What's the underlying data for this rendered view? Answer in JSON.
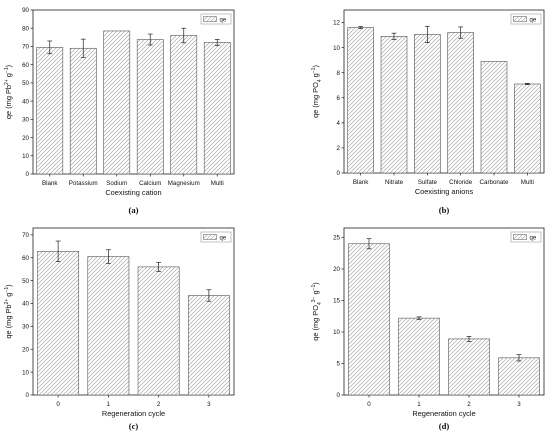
{
  "figure": {
    "panels": [
      {
        "id": "a",
        "label": "(a)",
        "ylabel_main": "qe (mg Pb",
        "ylabel_sup": "2+",
        "ylabel_tail": " g",
        "ylabel_sup2": "−1",
        "ylabel_close": ")",
        "xlabel": "Coexisting cation",
        "legend": "qe"
      },
      {
        "id": "b",
        "label": "(b)",
        "ylabel_main": "qe (mg PO",
        "ylabel_sub": "4",
        "ylabel_tail": " g",
        "ylabel_sup2": "−1",
        "ylabel_close": ")",
        "xlabel": "Coexisting anions",
        "legend": "qe"
      },
      {
        "id": "c",
        "label": "(c)",
        "ylabel_main": "qe (mg Pb",
        "ylabel_sup": "2+",
        "ylabel_tail": " g",
        "ylabel_sup2": "−1",
        "ylabel_close": ")",
        "xlabel": "Regeneration cycle",
        "legend": "qe"
      },
      {
        "id": "d",
        "label": "(d)",
        "ylabel_main": "qe (mg PO",
        "ylabel_sub": "4",
        "ylabel_sup": "3−",
        "ylabel_tail": " g",
        "ylabel_sup2": "−1",
        "ylabel_close": ")",
        "xlabel": "Regeneration cycle",
        "legend": "qe"
      }
    ],
    "colors": {
      "bar_fill": "#ffffff",
      "bar_stroke": "#555555",
      "hatch": "#9a9a9a",
      "axis": "#222222",
      "text": "#111111"
    }
  },
  "chart_data": [
    {
      "type": "bar",
      "categories": [
        "Blank",
        "Potassium",
        "Sodium",
        "Calcium",
        "Magnesium",
        "Multi"
      ],
      "values": [
        69.5,
        69.0,
        78.5,
        73.8,
        76.0,
        72.2
      ],
      "errors": [
        3.5,
        5.0,
        0.0,
        3.0,
        4.0,
        1.7
      ],
      "series": [
        {
          "name": "qe"
        }
      ],
      "xlabel": "Coexisting cation",
      "ylabel": "qe (mg Pb2+ g−1)",
      "ylim": [
        0,
        90
      ],
      "yticks": [
        0,
        10,
        20,
        30,
        40,
        50,
        60,
        70,
        80,
        90
      ],
      "legend_position": "top-right",
      "grid": false
    },
    {
      "type": "bar",
      "categories": [
        "Blank",
        "Nitrate",
        "Sulfate",
        "Chloride",
        "Carbonate",
        "Multi"
      ],
      "values": [
        11.6,
        10.9,
        11.05,
        11.2,
        8.9,
        7.1
      ],
      "errors": [
        0.08,
        0.25,
        0.65,
        0.45,
        0.0,
        0.05
      ],
      "series": [
        {
          "name": "qe"
        }
      ],
      "xlabel": "Coexisting anions",
      "ylabel": "qe (mg PO4 g−1)",
      "ylim": [
        0,
        13
      ],
      "yticks": [
        0,
        2,
        4,
        6,
        8,
        10,
        12
      ],
      "legend_position": "top-right",
      "grid": false
    },
    {
      "type": "bar",
      "categories": [
        "0",
        "1",
        "2",
        "3"
      ],
      "values": [
        62.8,
        60.5,
        56.0,
        43.5
      ],
      "errors": [
        4.5,
        3.0,
        2.0,
        2.5
      ],
      "series": [
        {
          "name": "qe"
        }
      ],
      "xlabel": "Regeneration cycle",
      "ylabel": "qe (mg Pb2+ g−1)",
      "ylim": [
        0,
        73
      ],
      "yticks": [
        0,
        10,
        20,
        30,
        40,
        50,
        60,
        70
      ],
      "legend_position": "top-right",
      "grid": false
    },
    {
      "type": "bar",
      "categories": [
        "0",
        "1",
        "2",
        "3"
      ],
      "values": [
        24.0,
        12.2,
        8.9,
        5.9
      ],
      "errors": [
        0.8,
        0.2,
        0.4,
        0.5
      ],
      "series": [
        {
          "name": "qe"
        }
      ],
      "xlabel": "Regeneration cycle",
      "ylabel": "qe (mg PO43− g−1)",
      "ylim": [
        0,
        26.5
      ],
      "yticks": [
        0,
        5,
        10,
        15,
        20,
        25
      ],
      "legend_position": "top-right",
      "grid": false
    }
  ]
}
